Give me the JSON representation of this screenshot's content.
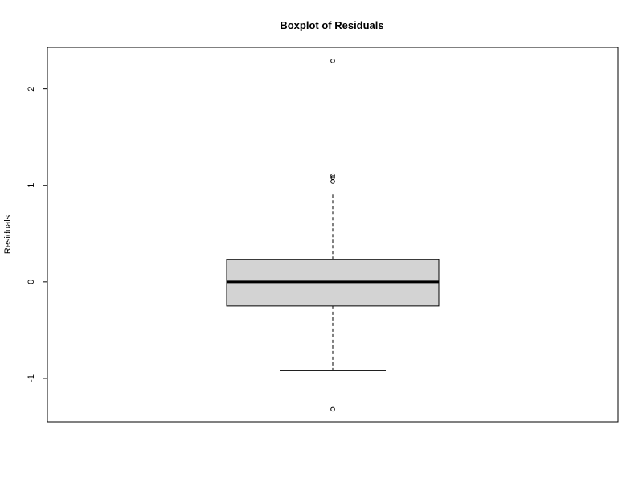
{
  "chart_data": {
    "type": "boxplot",
    "title": "Boxplot of Residuals",
    "xlabel": "",
    "ylabel": "Residuals",
    "ylim": [
      -1.45,
      2.43
    ],
    "yticks": [
      -1,
      0,
      1,
      2
    ],
    "ytick_labels": [
      "-1",
      "0",
      "1",
      "2"
    ],
    "grid": false,
    "legend": "none",
    "colors": {
      "box_fill": "#d3d3d3",
      "stroke": "#000000",
      "background": "#ffffff"
    },
    "boxes": [
      {
        "whisker_low": -0.92,
        "q1": -0.25,
        "median": 0.0,
        "q3": 0.23,
        "whisker_high": 0.91,
        "outliers": [
          2.29,
          1.1,
          1.08,
          1.04,
          -1.32
        ]
      }
    ]
  }
}
